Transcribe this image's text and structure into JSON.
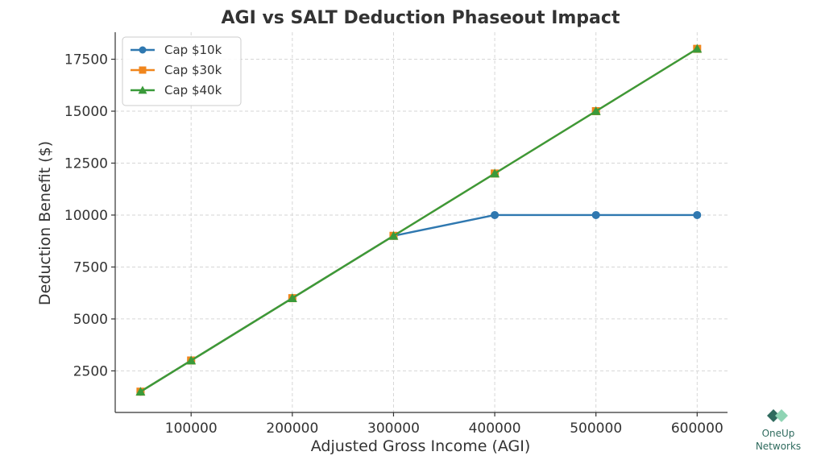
{
  "chart_data": {
    "type": "line",
    "title": "AGI vs SALT Deduction Phaseout Impact",
    "xlabel": "Adjusted Gross Income (AGI)",
    "ylabel": "Deduction Benefit ($)",
    "x": [
      50000,
      100000,
      200000,
      300000,
      400000,
      500000,
      600000
    ],
    "xlim": [
      25000,
      630000
    ],
    "ylim": [
      500,
      18800
    ],
    "xticks": [
      100000,
      200000,
      300000,
      400000,
      500000,
      600000
    ],
    "yticks": [
      2500,
      5000,
      7500,
      10000,
      12500,
      15000,
      17500
    ],
    "grid": true,
    "legend_position": "top-left",
    "series": [
      {
        "name": "Cap $10k",
        "color": "#2f78b0",
        "marker": "circle",
        "values": [
          1500,
          3000,
          6000,
          9000,
          10000,
          10000,
          10000
        ]
      },
      {
        "name": "Cap $30k",
        "color": "#f0861d",
        "marker": "square",
        "values": [
          1500,
          3000,
          6000,
          9000,
          12000,
          15000,
          18000
        ]
      },
      {
        "name": "Cap $40k",
        "color": "#3a9a3a",
        "marker": "triangle",
        "values": [
          1500,
          3000,
          6000,
          9000,
          12000,
          15000,
          18000
        ]
      }
    ]
  },
  "logo": {
    "line1": "OneUp",
    "line2": "Networks",
    "color_dark": "#2f6b5e",
    "color_light": "#8fd4b4"
  }
}
